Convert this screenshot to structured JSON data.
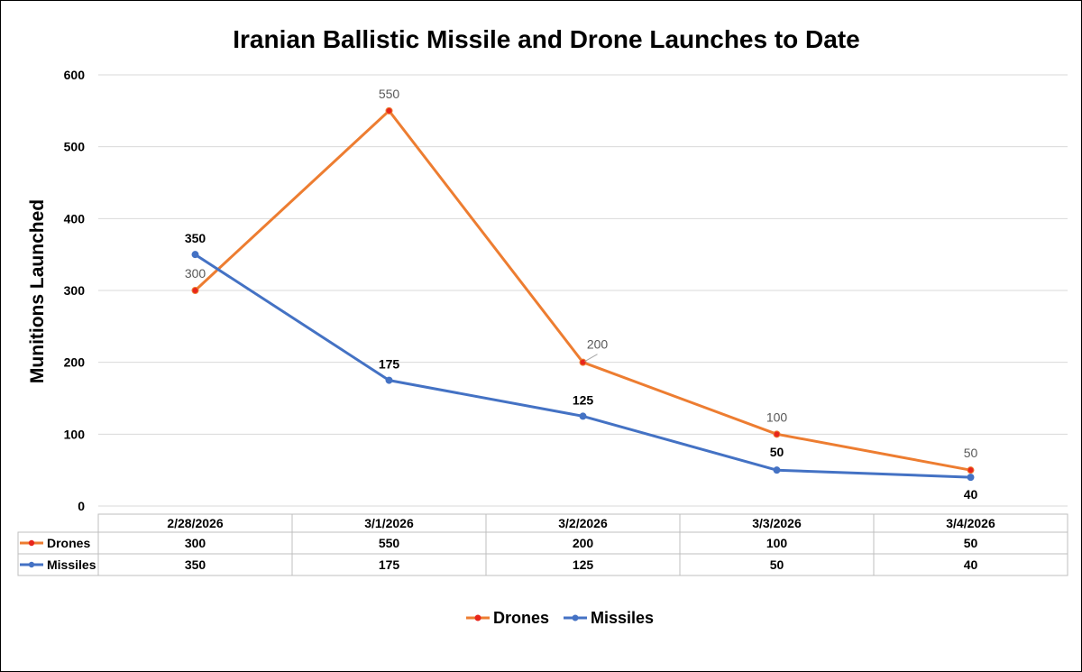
{
  "chart_data": {
    "type": "line",
    "title": "Iranian Ballistic Missile and Drone Launches to Date",
    "ylabel": "Munitions Launched",
    "xlabel": "",
    "categories": [
      "2/28/2026",
      "3/1/2026",
      "3/2/2026",
      "3/3/2026",
      "3/4/2026"
    ],
    "ylim": [
      0,
      600
    ],
    "yticks": [
      0,
      100,
      200,
      300,
      400,
      500,
      600
    ],
    "grid": true,
    "legend": "bottom",
    "data_table": true,
    "series": [
      {
        "name": "Drones",
        "values": [
          300,
          550,
          200,
          100,
          50
        ],
        "color": "#ED7D31",
        "marker_color": "#E8261C"
      },
      {
        "name": "Missiles",
        "values": [
          350,
          175,
          125,
          50,
          40
        ],
        "color": "#4472C4",
        "marker_color": "#4472C4"
      }
    ]
  }
}
